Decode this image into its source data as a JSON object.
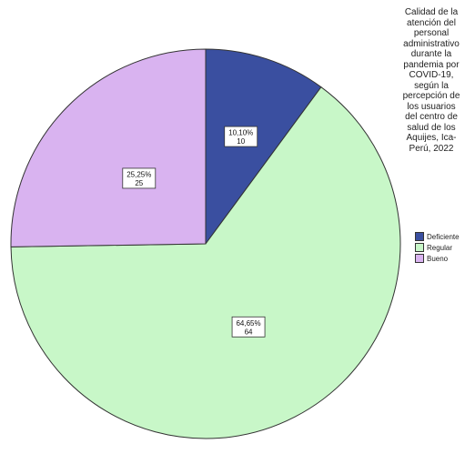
{
  "chart_data": {
    "type": "pie",
    "legend_title": "Calidad de la\natención del\npersonal\nadministrativo\ndurante la\npandemia por\nCOVID-19,\nsegún la\npercepción de\nlos usuarios\ndel centro de\nsalud de los\nAquijes, Ica-\nPerú, 2022",
    "legend_position": "right",
    "slices": [
      {
        "name": "Deficiente",
        "percent_label": "10,10%",
        "count_label": "10",
        "value": 10,
        "color": "#3a4fa0"
      },
      {
        "name": "Regular",
        "percent_label": "64,65%",
        "count_label": "64",
        "value": 64,
        "color": "#c8f7c8"
      },
      {
        "name": "Bueno",
        "percent_label": "25,25%",
        "count_label": "25",
        "value": 25,
        "color": "#d9b3f0"
      }
    ]
  }
}
